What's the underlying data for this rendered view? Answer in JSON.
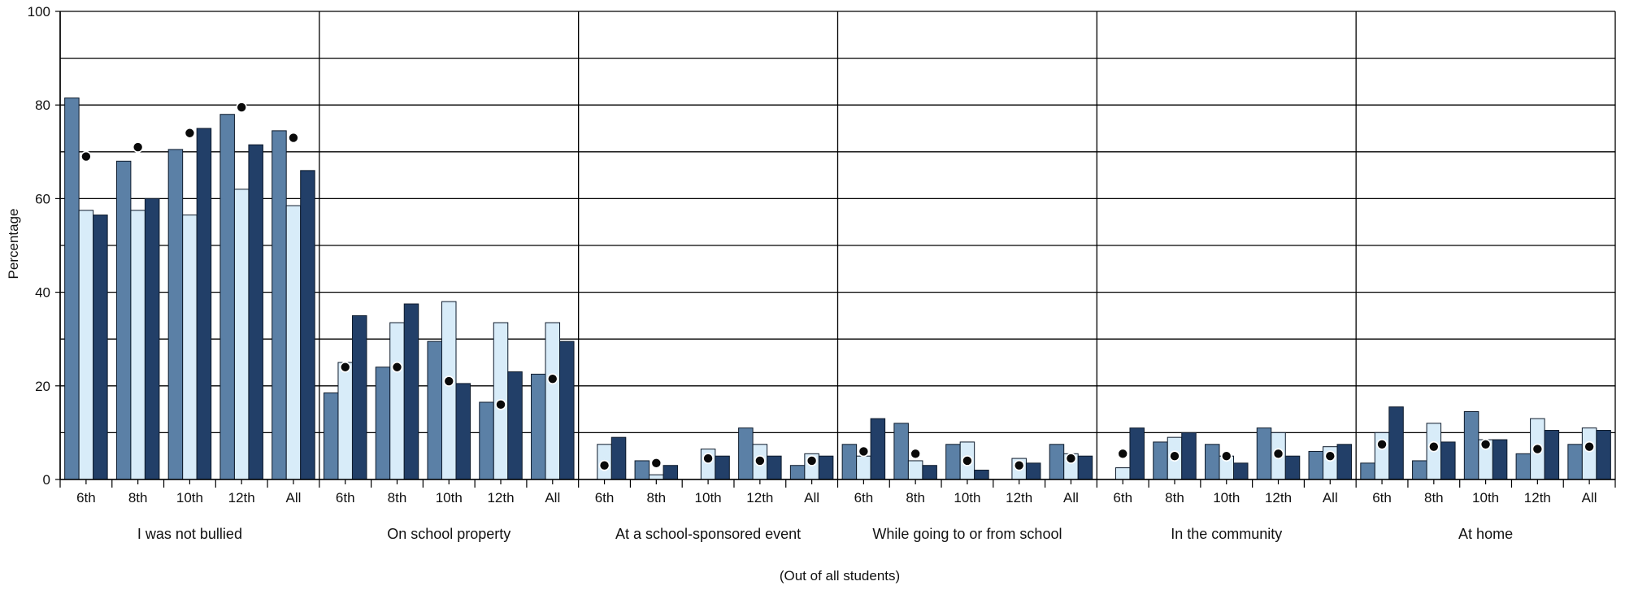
{
  "chart_data": {
    "type": "bar",
    "ylabel": "Percentage",
    "xlabel": "(Out of all students)",
    "ylim": [
      0,
      100
    ],
    "yticks": [
      0,
      20,
      40,
      60,
      80,
      100
    ],
    "grid": true,
    "subcategories": [
      "6th",
      "8th",
      "10th",
      "12th",
      "All"
    ],
    "groups": [
      "I was not bullied",
      "On school property",
      "At a school-sponsored event",
      "While going to or from school",
      "In the community",
      "At home"
    ],
    "colors": {
      "bar1": "#5b80a6",
      "bar2": "#d8ecf9",
      "bar3": "#223f68",
      "dot": "#0a0a0a"
    },
    "series": [
      {
        "values": [
          [
            81.5,
            68,
            70.5,
            78,
            74.5
          ],
          [
            18.5,
            24,
            29.5,
            16.5,
            22.5
          ],
          [
            0,
            4,
            0,
            11,
            3
          ],
          [
            7.5,
            12,
            7.5,
            0,
            7.5
          ],
          [
            0,
            8,
            7.5,
            11,
            6
          ],
          [
            3.5,
            4,
            14.5,
            5.5,
            7.5
          ]
        ]
      },
      {
        "values": [
          [
            57.5,
            57.5,
            56.5,
            62,
            58.5
          ],
          [
            25,
            33.5,
            38,
            33.5,
            33.5
          ],
          [
            7.5,
            1,
            6.5,
            7.5,
            5.5
          ],
          [
            5,
            4,
            8,
            4.5,
            5.5
          ],
          [
            2.5,
            9,
            5,
            10,
            7
          ],
          [
            10,
            12,
            8.5,
            13,
            11
          ]
        ]
      },
      {
        "values": [
          [
            56.5,
            60,
            75,
            71.5,
            66
          ],
          [
            35,
            37.5,
            20.5,
            23,
            29.5
          ],
          [
            9,
            3,
            5,
            5,
            5
          ],
          [
            13,
            3,
            2,
            3.5,
            5
          ],
          [
            11,
            10,
            3.5,
            5,
            7.5
          ],
          [
            15.5,
            8,
            8.5,
            10.5,
            10.5
          ]
        ]
      }
    ],
    "markers": [
      [
        69,
        71,
        74,
        79.5,
        73
      ],
      [
        24,
        24,
        21,
        16,
        21.5
      ],
      [
        3,
        3.5,
        4.5,
        4,
        4
      ],
      [
        6,
        5.5,
        4,
        3,
        4.5
      ],
      [
        5.5,
        5,
        5,
        5.5,
        5
      ],
      [
        7.5,
        7,
        7.5,
        6.5,
        7
      ]
    ]
  }
}
